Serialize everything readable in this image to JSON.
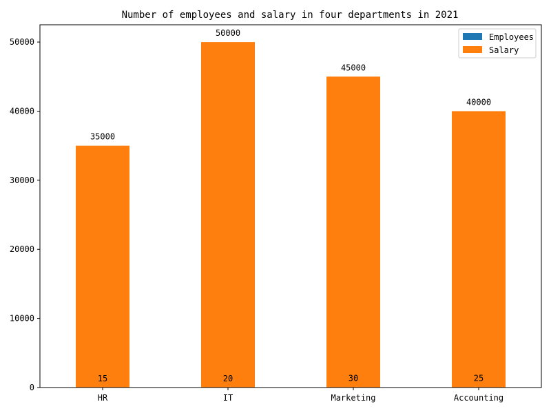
{
  "chart_data": {
    "type": "bar",
    "title": "Number of employees and salary in four departments in 2021",
    "xlabel": "",
    "ylabel": "",
    "categories": [
      "HR",
      "IT",
      "Marketing",
      "Accounting"
    ],
    "series": [
      {
        "name": "Employees",
        "values": [
          15,
          20,
          30,
          25
        ],
        "color": "#1f77b4"
      },
      {
        "name": "Salary",
        "values": [
          35000,
          50000,
          45000,
          40000
        ],
        "color": "#ff7f0e"
      }
    ],
    "ylim": [
      0,
      52500
    ],
    "yticks": [
      0,
      10000,
      20000,
      30000,
      40000,
      50000
    ],
    "grid": false,
    "legend_position": "top-right"
  }
}
